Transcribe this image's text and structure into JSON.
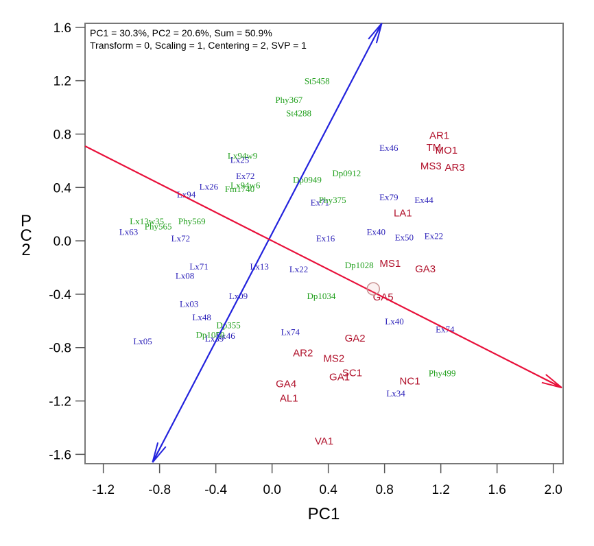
{
  "chart_data": {
    "type": "scatter",
    "title": "",
    "xlabel": "PC1",
    "ylabel": "PC2",
    "xlim": [
      -1.33,
      2.07
    ],
    "ylim": [
      -1.67,
      1.63
    ],
    "xticks": [
      -1.2,
      -0.8,
      -0.4,
      0.0,
      0.4,
      0.8,
      1.2,
      1.6,
      2.0
    ],
    "xtick_labels": [
      "-1.2",
      "-0.8",
      "-0.4",
      "0.0",
      "0.4",
      "0.8",
      "1.2",
      "1.6",
      "2.0"
    ],
    "yticks": [
      1.6,
      1.2,
      0.8,
      0.4,
      0.0,
      -0.4,
      -0.8,
      -1.2,
      -1.6
    ],
    "ytick_labels": [
      "1.6",
      "1.2",
      "0.8",
      "0.4",
      "0.0",
      "-0.4",
      "-0.8",
      "-1.2",
      "-1.6"
    ],
    "grid": false,
    "annotations": [
      "PC1 = 30.3%, PC2 = 20.6%, Sum = 50.9%",
      "Transform = 0, Scaling = 1, Centering = 2, SVP = 1"
    ],
    "colors": {
      "blue_group": "#2a1fb8",
      "green_group": "#22a01e",
      "red_group": "#b0102a",
      "blue_arrow": "#2222dd",
      "red_arrow": "#e8103a",
      "marker_circle": "#c89090"
    },
    "series": [
      {
        "name": "blue",
        "style": "serif",
        "color_key": "blue_group",
        "points": [
          {
            "label": "Ex46",
            "x": 0.83,
            "y": 0.7
          },
          {
            "label": "Lx25",
            "x": -0.23,
            "y": 0.61
          },
          {
            "label": "Ex72",
            "x": -0.19,
            "y": 0.49
          },
          {
            "label": "Lx26",
            "x": -0.45,
            "y": 0.41
          },
          {
            "label": "Lx94",
            "x": -0.61,
            "y": 0.35
          },
          {
            "label": "Ex71",
            "x": 0.34,
            "y": 0.29
          },
          {
            "label": "Ex79",
            "x": 0.83,
            "y": 0.33
          },
          {
            "label": "Ex44",
            "x": 1.08,
            "y": 0.31
          },
          {
            "label": "Lx63",
            "x": -1.02,
            "y": 0.07
          },
          {
            "label": "Lx72",
            "x": -0.65,
            "y": 0.02
          },
          {
            "label": "Ex40",
            "x": 0.74,
            "y": 0.07
          },
          {
            "label": "Ex16",
            "x": 0.38,
            "y": 0.02
          },
          {
            "label": "Ex50",
            "x": 0.94,
            "y": 0.03
          },
          {
            "label": "Ex22",
            "x": 1.15,
            "y": 0.04
          },
          {
            "label": "Lx71",
            "x": -0.52,
            "y": -0.19
          },
          {
            "label": "Lx13",
            "x": -0.09,
            "y": -0.19
          },
          {
            "label": "Lx08",
            "x": -0.62,
            "y": -0.26
          },
          {
            "label": "Lx22",
            "x": 0.19,
            "y": -0.21
          },
          {
            "label": "Lx09",
            "x": -0.24,
            "y": -0.41
          },
          {
            "label": "Lx03",
            "x": -0.59,
            "y": -0.47
          },
          {
            "label": "Lx48",
            "x": -0.5,
            "y": -0.57
          },
          {
            "label": "Lx39",
            "x": -0.41,
            "y": -0.73
          },
          {
            "label": "Lx46",
            "x": -0.33,
            "y": -0.71
          },
          {
            "label": "Lx05",
            "x": -0.92,
            "y": -0.75
          },
          {
            "label": "Lx40",
            "x": 0.87,
            "y": -0.6
          },
          {
            "label": "Ex74",
            "x": 1.23,
            "y": -0.66
          },
          {
            "label": "Lx74",
            "x": 0.13,
            "y": -0.68
          },
          {
            "label": "Lx34",
            "x": 0.88,
            "y": -1.14
          }
        ]
      },
      {
        "name": "green",
        "style": "serif",
        "color_key": "green_group",
        "points": [
          {
            "label": "St5458",
            "x": 0.32,
            "y": 1.2
          },
          {
            "label": "Phy367",
            "x": 0.12,
            "y": 1.06
          },
          {
            "label": "St4288",
            "x": 0.19,
            "y": 0.96
          },
          {
            "label": "Lx94w9",
            "x": -0.21,
            "y": 0.64
          },
          {
            "label": "Lx94w6",
            "x": -0.19,
            "y": 0.42
          },
          {
            "label": "Fm1740",
            "x": -0.23,
            "y": 0.39
          },
          {
            "label": "Dp0949",
            "x": 0.25,
            "y": 0.46
          },
          {
            "label": "Dp0912",
            "x": 0.53,
            "y": 0.51
          },
          {
            "label": "Phy375",
            "x": 0.43,
            "y": 0.31
          },
          {
            "label": "Lx13w35",
            "x": -0.89,
            "y": 0.15
          },
          {
            "label": "Phy565",
            "x": -0.81,
            "y": 0.11
          },
          {
            "label": "Phy569",
            "x": -0.57,
            "y": 0.15
          },
          {
            "label": "Dp1028",
            "x": 0.62,
            "y": -0.18
          },
          {
            "label": "Dp1034",
            "x": 0.35,
            "y": -0.41
          },
          {
            "label": "Dp355",
            "x": -0.31,
            "y": -0.63
          },
          {
            "label": "Dp1050",
            "x": -0.44,
            "y": -0.7
          },
          {
            "label": "Phy499",
            "x": 1.21,
            "y": -0.99
          }
        ]
      },
      {
        "name": "red",
        "style": "sans",
        "color_key": "red_group",
        "points": [
          {
            "label": "AR1",
            "x": 1.19,
            "y": 0.79
          },
          {
            "label": "TM",
            "x": 1.15,
            "y": 0.7
          },
          {
            "label": "MO1",
            "x": 1.24,
            "y": 0.68
          },
          {
            "label": "MS3",
            "x": 1.13,
            "y": 0.56
          },
          {
            "label": "AR3",
            "x": 1.3,
            "y": 0.55
          },
          {
            "label": "LA1",
            "x": 0.93,
            "y": 0.21
          },
          {
            "label": "MS1",
            "x": 0.84,
            "y": -0.17
          },
          {
            "label": "GA3",
            "x": 1.09,
            "y": -0.21
          },
          {
            "label": "GA5",
            "x": 0.79,
            "y": -0.42
          },
          {
            "label": "GA2",
            "x": 0.59,
            "y": -0.73
          },
          {
            "label": "AR2",
            "x": 0.22,
            "y": -0.84
          },
          {
            "label": "MS2",
            "x": 0.44,
            "y": -0.88
          },
          {
            "label": "SC1",
            "x": 0.57,
            "y": -0.99
          },
          {
            "label": "GA1",
            "x": 0.48,
            "y": -1.02
          },
          {
            "label": "NC1",
            "x": 0.98,
            "y": -1.05
          },
          {
            "label": "GA4",
            "x": 0.1,
            "y": -1.07
          },
          {
            "label": "AL1",
            "x": 0.12,
            "y": -1.18
          },
          {
            "label": "VA1",
            "x": 0.37,
            "y": -1.5
          }
        ]
      }
    ],
    "arrows": [
      {
        "name": "blue-loading-arrow",
        "color_key": "blue_arrow",
        "from": [
          -0.85,
          -1.66
        ],
        "to": [
          0.78,
          1.63
        ],
        "double_headed": true
      },
      {
        "name": "red-loading-arrow",
        "color_key": "red_arrow",
        "from": [
          -1.33,
          0.71
        ],
        "to": [
          2.06,
          -1.1
        ],
        "double_headed": false
      }
    ],
    "highlight_marker": {
      "shape": "circle",
      "x": 0.72,
      "y": -0.36
    }
  }
}
